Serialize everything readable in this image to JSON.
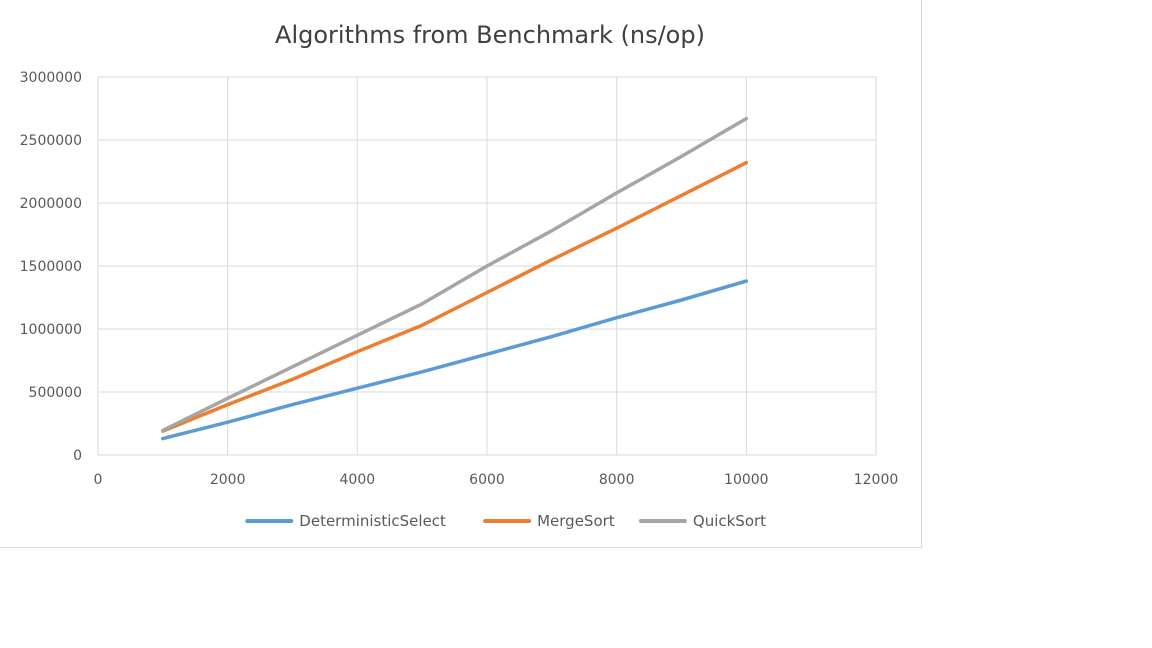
{
  "chart_data": {
    "type": "line",
    "title": "Algorithms from Benchmark (ns/op)",
    "xlabel": "",
    "ylabel": "",
    "xlim": [
      0,
      12000
    ],
    "ylim": [
      0,
      3000000
    ],
    "x_ticks": [
      0,
      2000,
      4000,
      6000,
      8000,
      10000,
      12000
    ],
    "y_ticks": [
      0,
      500000,
      1000000,
      1500000,
      2000000,
      2500000,
      3000000
    ],
    "x_tick_labels": [
      "0",
      "2000",
      "4000",
      "6000",
      "8000",
      "10000",
      "12000"
    ],
    "y_tick_labels": [
      "0",
      "500000",
      "1000000",
      "1500000",
      "2000000",
      "2500000",
      "3000000"
    ],
    "grid": true,
    "legend_position": "bottom",
    "x": [
      1000,
      2000,
      3000,
      4000,
      5000,
      6000,
      7000,
      8000,
      9000,
      10000
    ],
    "series": [
      {
        "name": "DeterministicSelect",
        "color": "#5b9bd5",
        "values": [
          130000,
          260000,
          400000,
          530000,
          660000,
          800000,
          940000,
          1090000,
          1230000,
          1380000
        ]
      },
      {
        "name": "MergeSort",
        "color": "#ed7d31",
        "values": [
          190000,
          400000,
          600000,
          820000,
          1030000,
          1290000,
          1550000,
          1800000,
          2060000,
          2320000
        ]
      },
      {
        "name": "QuickSort",
        "color": "#a5a5a5",
        "values": [
          195000,
          450000,
          700000,
          950000,
          1200000,
          1500000,
          1780000,
          2080000,
          2370000,
          2670000
        ]
      }
    ]
  }
}
